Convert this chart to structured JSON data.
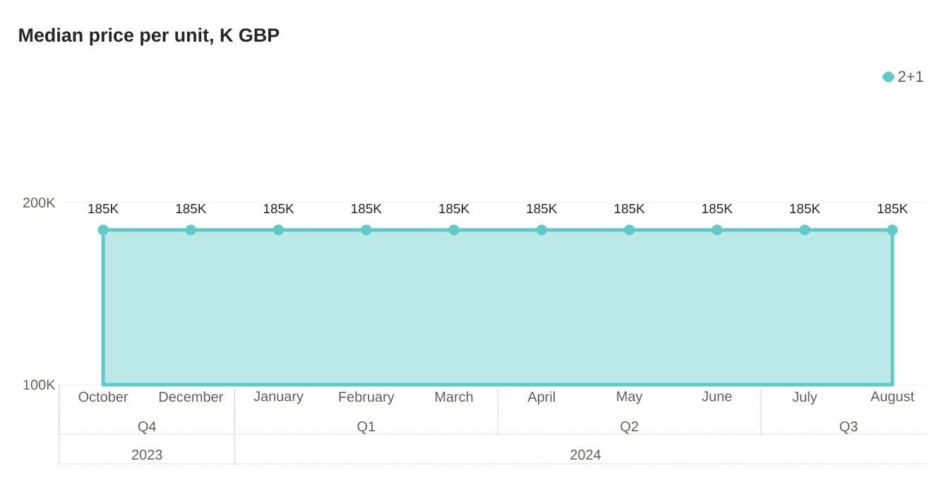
{
  "chart_data": {
    "type": "area",
    "title": "Median price per unit, K GBP",
    "categories": [
      "October",
      "December",
      "January",
      "February",
      "March",
      "April",
      "May",
      "June",
      "July",
      "August"
    ],
    "series": [
      {
        "name": "2+1",
        "color": "#5ecbc8",
        "values": [
          185000,
          185000,
          185000,
          185000,
          185000,
          185000,
          185000,
          185000,
          185000,
          185000
        ],
        "value_labels": [
          "185K",
          "185K",
          "185K",
          "185K",
          "185K",
          "185K",
          "185K",
          "185K",
          "185K",
          "185K"
        ]
      }
    ],
    "ylim": [
      100000,
      200000
    ],
    "yticks": [
      {
        "value": 100000,
        "label": "100K"
      },
      {
        "value": 200000,
        "label": "200K"
      }
    ],
    "grid": "y",
    "legend": "top right",
    "marker": "circle",
    "annotations": [
      "Q4",
      "Q1",
      "Q2",
      "Q3",
      "2023",
      "2024"
    ]
  }
}
